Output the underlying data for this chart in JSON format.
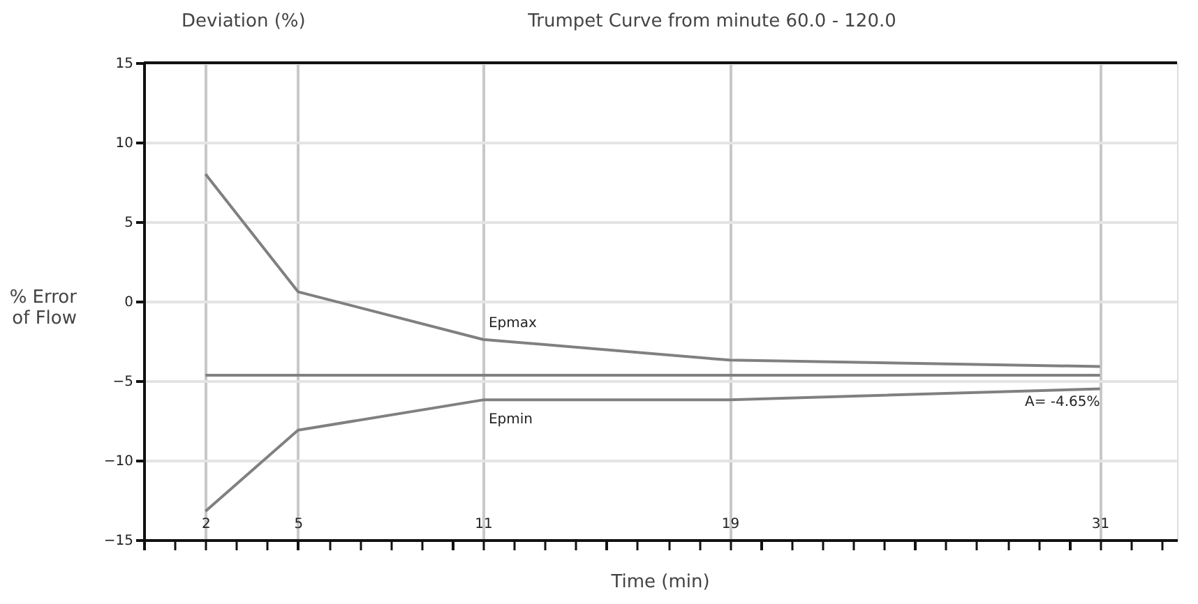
{
  "chart_data": {
    "type": "line",
    "title": "Trumpet Curve from minute 60.0 - 120.0",
    "xlabel": "Time (min)",
    "ylabel": "% Error of Flow",
    "annotations": [
      "Deviation (%)"
    ],
    "x": [
      2,
      5,
      11,
      19,
      31
    ],
    "series": [
      {
        "name": "Epmax",
        "color": "#808080",
        "values": [
          8.0,
          0.6,
          -2.4,
          -3.7,
          -4.1
        ]
      },
      {
        "name": "Epmin",
        "color": "#808080",
        "values": [
          -13.2,
          -8.1,
          -6.2,
          -6.2,
          -5.5
        ]
      }
    ],
    "ref_lines": [
      {
        "axis": "y",
        "value": -4.65,
        "label": "A= -4.65%",
        "color": "#808080"
      }
    ],
    "xlim": [
      0,
      33.5
    ],
    "ylim": [
      -15,
      15
    ],
    "xticks": [
      {
        "value": 0,
        "label": null
      },
      {
        "value": 1,
        "label": null
      },
      2,
      {
        "value": 3,
        "label": null
      },
      {
        "value": 4,
        "label": null
      },
      5,
      {
        "value": 6,
        "label": null
      },
      {
        "value": 7,
        "label": null
      },
      {
        "value": 8,
        "label": null
      },
      {
        "value": 9,
        "label": null
      },
      {
        "value": 10,
        "label": null
      },
      11,
      {
        "value": 12,
        "label": null
      },
      {
        "value": 13,
        "label": null
      },
      {
        "value": 14,
        "label": null
      },
      {
        "value": 15,
        "label": null
      },
      {
        "value": 16,
        "label": null
      },
      {
        "value": 17,
        "label": null
      },
      {
        "value": 18,
        "label": null
      },
      19,
      {
        "value": 20,
        "label": null
      },
      {
        "value": 21,
        "label": null
      },
      {
        "value": 22,
        "label": null
      },
      {
        "value": 23,
        "label": null
      },
      {
        "value": 24,
        "label": null
      },
      {
        "value": 25,
        "label": null
      },
      {
        "value": 26,
        "label": null
      },
      {
        "value": 27,
        "label": null
      },
      {
        "value": 28,
        "label": null
      },
      {
        "value": 29,
        "label": null
      },
      {
        "value": 30,
        "label": null
      },
      31,
      {
        "value": 32,
        "label": null
      },
      {
        "value": 33,
        "label": null
      }
    ],
    "yticks": [
      -15,
      -10,
      -5,
      0,
      5,
      10,
      15
    ],
    "grid": true,
    "marker": "none",
    "line_style": "solid"
  }
}
